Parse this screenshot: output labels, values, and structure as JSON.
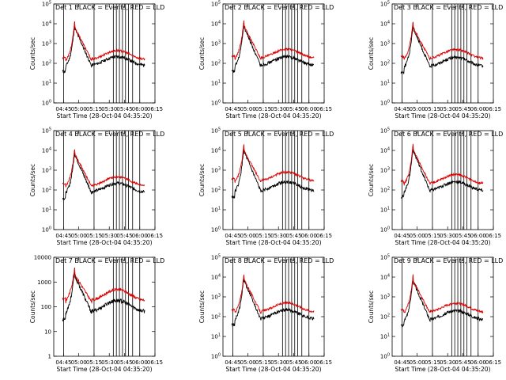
{
  "chart_data": {
    "type": "line",
    "layout": "3x3 grid",
    "x_tick_labels": [
      "04:45",
      "05:00",
      "05:15",
      "05:30",
      "05:45",
      "06:00",
      "06:15"
    ],
    "x_range": [
      "04:35:20",
      "06:15:00"
    ],
    "xlabel": "Start Time (28-Oct-04 04:35:20)",
    "ylabel": "Counts/sec",
    "yscale": "log",
    "series_colors": {
      "Events": "#000000",
      "LLD": "#dd0000"
    },
    "series_names": [
      "Events",
      "LLD"
    ],
    "event_line_times": [
      "04:45",
      "05:15",
      "05:34",
      "05:37",
      "05:40",
      "05:43",
      "05:46",
      "05:49",
      "05:53",
      "06:00"
    ],
    "panels": [
      {
        "title": "Det 1 BLACK = Events, RED = LLD",
        "ylim": [
          1,
          100000
        ],
        "y_tick_labels": [
          "10^0",
          "10^1",
          "10^2",
          "10^3",
          "10^4",
          "10^5"
        ],
        "events_base": 110,
        "lld_base": 220,
        "peak": 6000
      },
      {
        "title": "Det 2 BLACK = Events, RED = LLD",
        "ylim": [
          1,
          100000
        ],
        "y_tick_labels": [
          "10^0",
          "10^1",
          "10^2",
          "10^3",
          "10^4",
          "10^5"
        ],
        "events_base": 110,
        "lld_base": 260,
        "peak": 7000
      },
      {
        "title": "Det 3 BLACK = Events, RED = LLD",
        "ylim": [
          1,
          100000
        ],
        "y_tick_labels": [
          "10^0",
          "10^1",
          "10^2",
          "10^3",
          "10^4",
          "10^5"
        ],
        "events_base": 100,
        "lld_base": 250,
        "peak": 6000
      },
      {
        "title": "Det 4 BLACK = Events, RED = LLD",
        "ylim": [
          1,
          100000
        ],
        "y_tick_labels": [
          "10^0",
          "10^1",
          "10^2",
          "10^3",
          "10^4",
          "10^5"
        ],
        "events_base": 110,
        "lld_base": 230,
        "peak": 6000
      },
      {
        "title": "Det 5 BLACK = Events, RED = LLD",
        "ylim": [
          1,
          100000
        ],
        "y_tick_labels": [
          "10^0",
          "10^1",
          "10^2",
          "10^3",
          "10^4",
          "10^5"
        ],
        "events_base": 130,
        "lld_base": 400,
        "peak": 9000
      },
      {
        "title": "Det 6 BLACK = Events, RED = LLD",
        "ylim": [
          1,
          100000
        ],
        "y_tick_labels": [
          "10^0",
          "10^1",
          "10^2",
          "10^3",
          "10^4",
          "10^5"
        ],
        "events_base": 130,
        "lld_base": 300,
        "peak": 10000
      },
      {
        "title": "Det 7 BLACK = Events, RED = LLD",
        "ylim": [
          1,
          10000
        ],
        "y_tick_labels": [
          "1",
          "10",
          "100",
          "1000",
          "10000"
        ],
        "events_base": 90,
        "lld_base": 250,
        "peak": 1800
      },
      {
        "title": "Det 8 BLACK = Events, RED = LLD",
        "ylim": [
          1,
          100000
        ],
        "y_tick_labels": [
          "10^0",
          "10^1",
          "10^2",
          "10^3",
          "10^4",
          "10^5"
        ],
        "events_base": 110,
        "lld_base": 250,
        "peak": 7000
      },
      {
        "title": "Det 9 BLACK = Events, RED = LLD",
        "ylim": [
          1,
          100000
        ],
        "y_tick_labels": [
          "10^0",
          "10^1",
          "10^2",
          "10^3",
          "10^4",
          "10^5"
        ],
        "events_base": 100,
        "lld_base": 240,
        "peak": 6000
      }
    ]
  }
}
